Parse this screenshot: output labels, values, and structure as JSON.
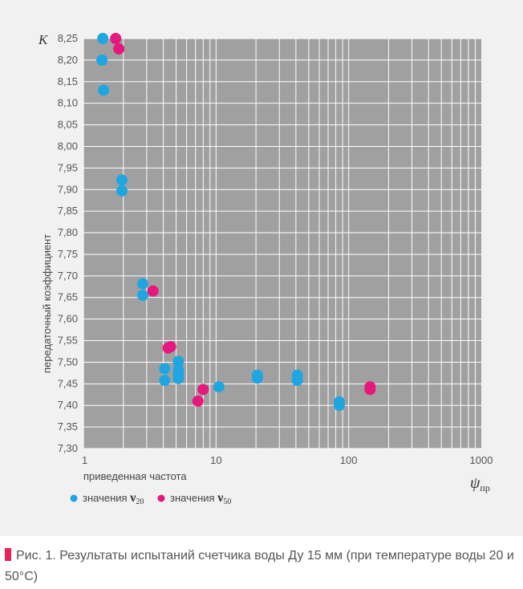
{
  "chart_data": {
    "type": "scatter",
    "x_scale": "log",
    "xlim": [
      1,
      1000
    ],
    "ylim": [
      7.3,
      8.25
    ],
    "x_ticks": [
      "1",
      "10",
      "100",
      "1000"
    ],
    "y_ticks": [
      "8,25",
      "8,20",
      "8,15",
      "8,10",
      "8,05",
      "8,00",
      "7,95",
      "7,90",
      "7,85",
      "7,80",
      "7,75",
      "7,70",
      "7,65",
      "7,60",
      "7,55",
      "7,50",
      "7,45",
      "7,40",
      "7,35",
      "7,30"
    ],
    "ylabel": "передаточный коэффициент",
    "y_axis_symbol": "K",
    "xlabel": "приведенная частота",
    "x_axis_symbol": "ψ",
    "x_axis_symbol_sub": "пр",
    "grid": true,
    "series": [
      {
        "name": "значения ν20",
        "legend_text": "значения",
        "legend_symbol": "ν",
        "legend_sub": "20",
        "color": "#1fa6e0",
        "points": [
          [
            1.4,
            8.25
          ],
          [
            1.38,
            8.2
          ],
          [
            1.42,
            8.13
          ],
          [
            1.95,
            7.922
          ],
          [
            1.95,
            7.897
          ],
          [
            2.8,
            7.682
          ],
          [
            2.8,
            7.655
          ],
          [
            4.1,
            7.485
          ],
          [
            4.1,
            7.458
          ],
          [
            5.2,
            7.502
          ],
          [
            5.2,
            7.482
          ],
          [
            5.2,
            7.472
          ],
          [
            5.2,
            7.462
          ],
          [
            10.5,
            7.443
          ],
          [
            20.5,
            7.47
          ],
          [
            20.5,
            7.463
          ],
          [
            41,
            7.47
          ],
          [
            41,
            7.458
          ],
          [
            85,
            7.408
          ],
          [
            85,
            7.4
          ]
        ]
      },
      {
        "name": "значения ν50",
        "legend_text": "значения",
        "legend_symbol": "ν",
        "legend_sub": "50",
        "color": "#e6187d",
        "points": [
          [
            1.75,
            8.25
          ],
          [
            1.85,
            8.226
          ],
          [
            3.35,
            7.665
          ],
          [
            4.35,
            7.533
          ],
          [
            4.55,
            7.536
          ],
          [
            7.3,
            7.41
          ],
          [
            8.0,
            7.437
          ],
          [
            145,
            7.443
          ],
          [
            145,
            7.437
          ]
        ]
      }
    ]
  },
  "caption": {
    "marker_color": "#e8235a",
    "text": "Рис. 1. Результаты испытаний счетчика воды Ду 15 мм (при температуре воды 20 и 50°С)"
  }
}
